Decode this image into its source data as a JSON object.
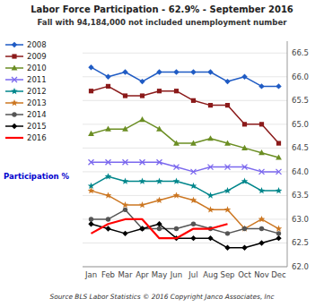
{
  "chart_data": {
    "type": "line",
    "title": "Labor Force Participation - 62.9% - September 2016",
    "subtitle": "Fall with 94,184,000 not included unemployment number",
    "ylabel": "Participation %",
    "footer": "Source BLS Labor Statistics © 2016 Copyright Janco Associates, Inc",
    "categories": [
      "Jan",
      "Feb",
      "Mar",
      "Apr",
      "May",
      "Jun",
      "Jul",
      "Aug",
      "Sep",
      "Oct",
      "Nov",
      "Dec"
    ],
    "ylim": [
      62.0,
      66.75
    ],
    "yticks": [
      {
        "value": 62.0,
        "label": "62.0"
      },
      62.5,
      {
        "value": 63.0,
        "label": "63.0"
      },
      63.5,
      {
        "value": 64.0,
        "label": "64.0"
      },
      64.5,
      {
        "value": 65.0,
        "label": "65.0"
      },
      65.5,
      {
        "value": 66.0,
        "label": "66.0"
      },
      66.5
    ],
    "grid": true,
    "legend": "left",
    "series": [
      {
        "name": "2008",
        "color": "#1F5BC4",
        "marker": "diamond",
        "values": [
          66.2,
          66.0,
          66.1,
          65.9,
          66.1,
          66.1,
          66.1,
          66.1,
          65.9,
          66.0,
          65.8,
          65.8
        ]
      },
      {
        "name": "2009",
        "color": "#8B1A1A",
        "marker": "square",
        "values": [
          65.7,
          65.8,
          65.6,
          65.6,
          65.7,
          65.7,
          65.5,
          65.4,
          65.4,
          65.0,
          65.0,
          64.6
        ]
      },
      {
        "name": "2010",
        "color": "#6B8E23",
        "marker": "triangle",
        "values": [
          64.8,
          64.9,
          64.9,
          65.1,
          64.9,
          64.6,
          64.6,
          64.7,
          64.6,
          64.5,
          64.4,
          64.3
        ]
      },
      {
        "name": "2011",
        "color": "#7B68EE",
        "marker": "x",
        "values": [
          64.2,
          64.2,
          64.2,
          64.2,
          64.2,
          64.1,
          64.0,
          64.1,
          64.1,
          64.1,
          64.0,
          64.0
        ]
      },
      {
        "name": "2012",
        "color": "#00868B",
        "marker": "star",
        "values": [
          63.7,
          63.9,
          63.8,
          63.8,
          63.8,
          63.8,
          63.7,
          63.5,
          63.6,
          63.8,
          63.6,
          63.6
        ]
      },
      {
        "name": "2013",
        "color": "#CC7722",
        "marker": "star",
        "values": [
          63.6,
          63.5,
          63.3,
          63.3,
          63.4,
          63.5,
          63.4,
          63.2,
          63.2,
          62.8,
          63.0,
          62.8
        ]
      },
      {
        "name": "2014",
        "color": "#555555",
        "marker": "circle",
        "values": [
          63.0,
          63.0,
          63.2,
          62.8,
          62.8,
          62.8,
          62.9,
          62.8,
          62.7,
          62.8,
          62.8,
          62.7
        ]
      },
      {
        "name": "2015",
        "color": "#000000",
        "marker": "diamond",
        "values": [
          62.9,
          62.8,
          62.7,
          62.8,
          62.9,
          62.6,
          62.6,
          62.6,
          62.4,
          62.4,
          62.5,
          62.6
        ]
      },
      {
        "name": "2016",
        "color": "#FF0000",
        "marker": "none",
        "values": [
          62.7,
          62.9,
          63.0,
          63.0,
          62.6,
          62.6,
          62.8,
          62.8,
          62.9,
          null,
          null,
          null
        ]
      }
    ]
  }
}
